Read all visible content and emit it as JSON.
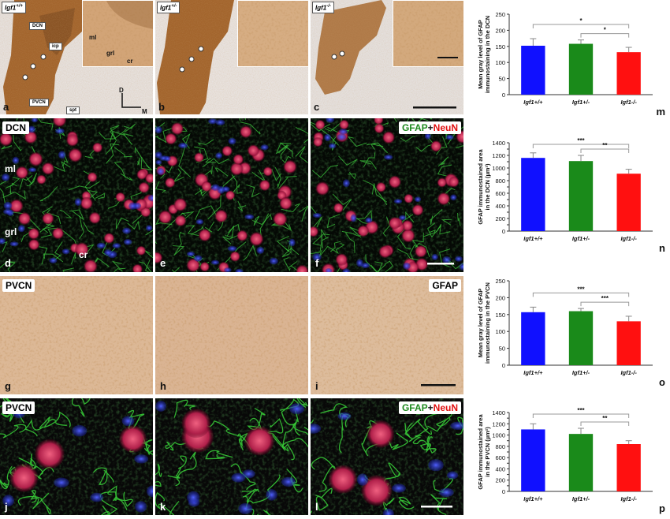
{
  "row1": {
    "a": {
      "genotype": "Igf1",
      "sup": "+/+",
      "panel": "a",
      "labels": {
        "dcn": "DCN",
        "icp": "icp",
        "pvcn": "PVCN",
        "spt": "spt"
      },
      "inset_labels": {
        "ml": "ml",
        "grl": "grl",
        "cr": "cr"
      },
      "axis": {
        "d": "D",
        "m": "M"
      }
    },
    "b": {
      "genotype": "Igf1",
      "sup": "+/-",
      "panel": "b"
    },
    "c": {
      "genotype": "Igf1",
      "sup": "-/-",
      "panel": "c"
    }
  },
  "row2": {
    "tag": "DCN",
    "stain_a": "GFAP",
    "plus": "+",
    "stain_b": "NeuN",
    "labels": {
      "ml": "ml",
      "grl": "grl",
      "cr": "cr"
    },
    "panels": [
      "d",
      "e",
      "f"
    ]
  },
  "row3": {
    "tag": "PVCN",
    "stain": "GFAP",
    "panels": [
      "g",
      "h",
      "i"
    ]
  },
  "row4": {
    "tag": "PVCN",
    "stain_a": "GFAP",
    "plus": "+",
    "stain_b": "NeuN",
    "panels": [
      "j",
      "k",
      "l"
    ]
  },
  "colors": {
    "wt": "#1010ff",
    "het": "#1a8a1a",
    "ko": "#ff1010",
    "gfap": "#22aa22",
    "neun": "#e01010",
    "dab": "#a0652e"
  },
  "chart_data": [
    {
      "panel": "m",
      "type": "bar",
      "categories": [
        "Igf1+/+",
        "Igf1+/-",
        "Igf1-/-"
      ],
      "values": [
        152,
        158,
        132
      ],
      "errors": [
        22,
        12,
        15
      ],
      "ylabel": [
        "Mean gray level of GFAP",
        "immunostaining in the DCN"
      ],
      "ylim": [
        0,
        250
      ],
      "yticks": [
        0,
        50,
        100,
        150,
        200,
        250
      ],
      "sig": [
        {
          "from": 0,
          "to": 2,
          "label": "*"
        },
        {
          "from": 1,
          "to": 2,
          "label": "*"
        }
      ]
    },
    {
      "panel": "n",
      "type": "bar",
      "categories": [
        "Igf1+/+",
        "Igf1+/-",
        "Igf1-/-"
      ],
      "values": [
        1160,
        1110,
        910
      ],
      "errors": [
        80,
        90,
        70
      ],
      "ylabel": [
        "GFAP immunostained area",
        "in the DCN (µm²)"
      ],
      "ylim": [
        0,
        1400
      ],
      "yticks": [
        0,
        100,
        200,
        300,
        400,
        500,
        600,
        700,
        800,
        900,
        1000,
        1100,
        1200,
        1300,
        1400
      ],
      "ytick_labels": [
        0,
        200,
        400,
        600,
        800,
        1000,
        1200,
        1400
      ],
      "sig": [
        {
          "from": 0,
          "to": 2,
          "label": "***"
        },
        {
          "from": 1,
          "to": 2,
          "label": "**"
        }
      ]
    },
    {
      "panel": "o",
      "type": "bar",
      "categories": [
        "Igf1+/+",
        "Igf1+/-",
        "Igf1-/-"
      ],
      "values": [
        157,
        160,
        130
      ],
      "errors": [
        15,
        8,
        15
      ],
      "ylabel": [
        "Mean gray level of GFAP",
        "immunostaining in the PVCN"
      ],
      "ylim": [
        0,
        250
      ],
      "yticks": [
        0,
        50,
        100,
        150,
        200,
        250
      ],
      "sig": [
        {
          "from": 0,
          "to": 2,
          "label": "***"
        },
        {
          "from": 1,
          "to": 2,
          "label": "***"
        }
      ]
    },
    {
      "panel": "p",
      "type": "bar",
      "categories": [
        "Igf1+/+",
        "Igf1+/-",
        "Igf1-/-"
      ],
      "values": [
        1100,
        1020,
        840
      ],
      "errors": [
        100,
        100,
        60
      ],
      "ylabel": [
        "GFAP immunostained area",
        "in the PVCN (µm²)"
      ],
      "ylim": [
        0,
        1400
      ],
      "yticks": [
        0,
        100,
        200,
        300,
        400,
        500,
        600,
        700,
        800,
        900,
        1000,
        1100,
        1200,
        1300,
        1400
      ],
      "ytick_labels": [
        0,
        200,
        400,
        600,
        800,
        1000,
        1200,
        1400
      ],
      "sig": [
        {
          "from": 0,
          "to": 2,
          "label": "***"
        },
        {
          "from": 1,
          "to": 2,
          "label": "**"
        }
      ]
    }
  ]
}
